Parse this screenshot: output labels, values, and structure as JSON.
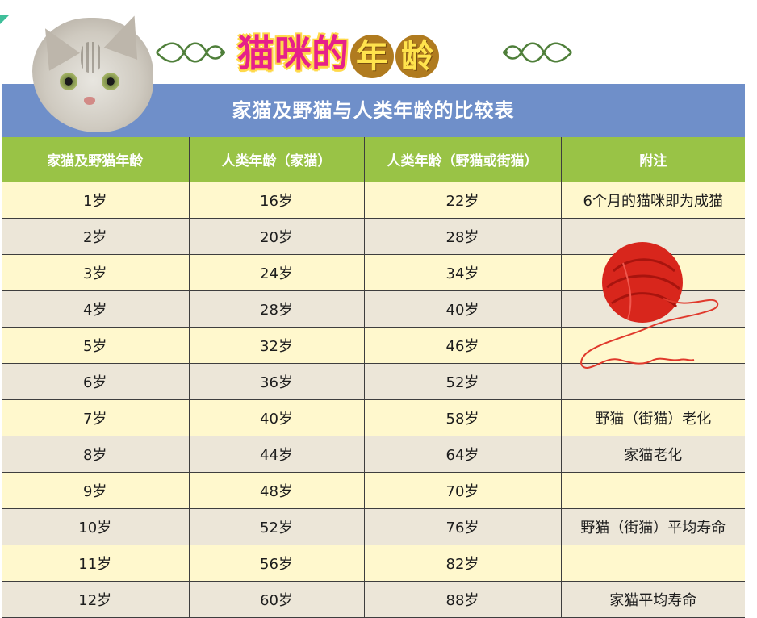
{
  "title": {
    "prefix": "猫咪的",
    "char1": "年",
    "char2": "龄"
  },
  "table": {
    "caption": "家猫及野猫与人类年龄的比较表",
    "headers": [
      "家猫及野猫年龄",
      "人类年龄（家猫）",
      "人类年龄（野猫或街猫）",
      "附注"
    ],
    "rows": [
      [
        "1岁",
        "16岁",
        "22岁",
        "6个月的猫咪即为成猫"
      ],
      [
        "2岁",
        "20岁",
        "28岁",
        ""
      ],
      [
        "3岁",
        "24岁",
        "34岁",
        ""
      ],
      [
        "4岁",
        "28岁",
        "40岁",
        ""
      ],
      [
        "5岁",
        "32岁",
        "46岁",
        ""
      ],
      [
        "6岁",
        "36岁",
        "52岁",
        ""
      ],
      [
        "7岁",
        "40岁",
        "58岁",
        "野猫（街猫）老化"
      ],
      [
        "8岁",
        "44岁",
        "64岁",
        "家猫老化"
      ],
      [
        "9岁",
        "48岁",
        "70岁",
        ""
      ],
      [
        "10岁",
        "52岁",
        "76岁",
        "野猫（街猫）平均寿命"
      ],
      [
        "11岁",
        "56岁",
        "82岁",
        ""
      ],
      [
        "12岁",
        "60岁",
        "88岁",
        "家猫平均寿命"
      ]
    ]
  },
  "colors": {
    "header_blue": "#6f8fc9",
    "column_green": "#99c346",
    "row_yellow": "#fff8cd",
    "row_beige": "#ece6d8",
    "title_pink": "#e6208a",
    "yarn_red": "#d8261c"
  },
  "decor": {
    "cat_image": "cat-face-photo",
    "yarn_image": "red-yarn-ball",
    "flourish_icon": "ornament-flourish-icon"
  }
}
